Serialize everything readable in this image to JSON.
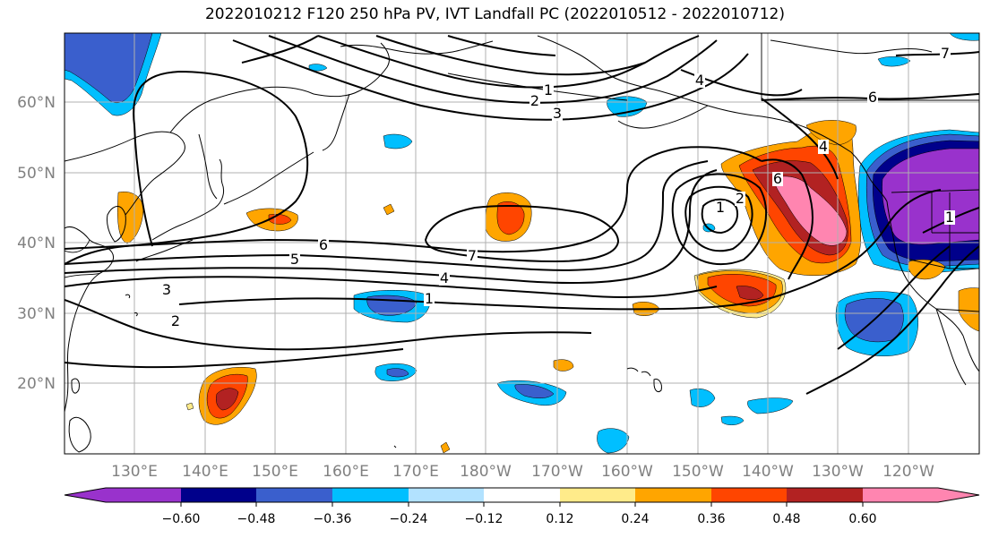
{
  "title": "2022010212 F120 250 hPa PV, IVT Landfall PC (2022010512 - 2022010712)",
  "lat_labels": [
    "60°N",
    "50°N",
    "40°N",
    "30°N",
    "20°N"
  ],
  "lon_labels": [
    "130°E",
    "140°E",
    "150°E",
    "160°E",
    "170°E",
    "180°W",
    "170°W",
    "160°W",
    "150°W",
    "140°W",
    "130°W",
    "120°W"
  ],
  "contour_labels": [
    "1",
    "2",
    "3",
    "4",
    "5",
    "6",
    "7",
    "1",
    "2",
    "6",
    "4",
    "6",
    "7",
    "1",
    "2",
    "3",
    "4",
    "6",
    "7",
    "1"
  ],
  "colorbar": {
    "tick_labels": [
      "−0.60",
      "−0.48",
      "−0.36",
      "−0.24",
      "−0.12",
      "0.12",
      "0.24",
      "0.36",
      "0.48",
      "0.60"
    ],
    "colors": [
      "#9932CC",
      "#00008B",
      "#3A5FCD",
      "#00BFFF",
      "#B2E2FF",
      "#FFFFFF",
      "#FFEB8A",
      "#FFA500",
      "#FF4500",
      "#B22222",
      "#FF85B0"
    ]
  },
  "fill_colors": {
    "purple": "#9932CC",
    "navy": "#00008B",
    "blue": "#3A5FCD",
    "sky": "#00BFFF",
    "light_blue": "#B2E2FF",
    "yellow": "#FFEB8A",
    "orange": "#FFA500",
    "red_orange": "#FF4500",
    "firebrick": "#B22222",
    "pink": "#FF85B0"
  }
}
